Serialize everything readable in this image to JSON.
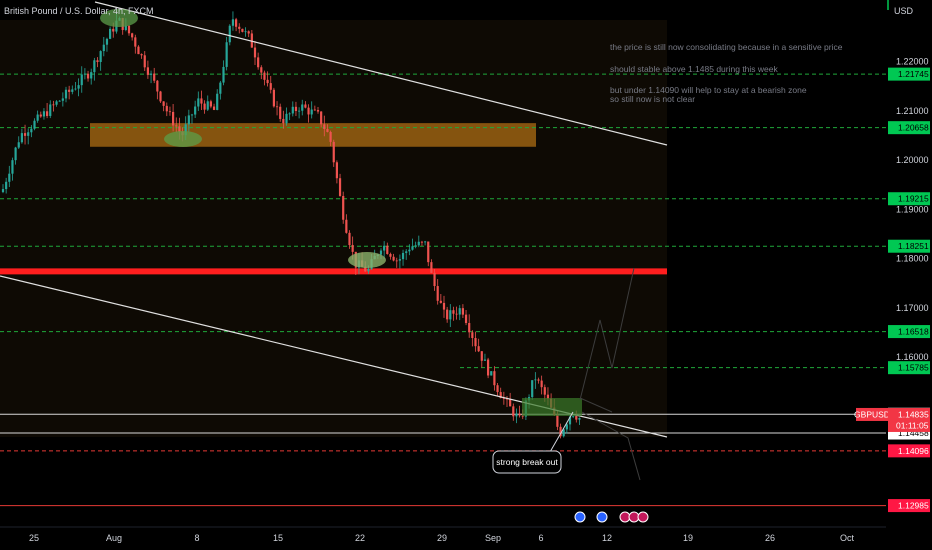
{
  "header": {
    "symbol_title": "British Pound / U.S. Dollar, 4h, FXCM",
    "currency": "USD"
  },
  "chart_data": {
    "type": "candlestick",
    "symbol": "GBPUSD",
    "timeframe": "4h",
    "ylim": [
      1.1255,
      1.2325
    ],
    "x_ticks": [
      "25",
      "Aug",
      "8",
      "15",
      "22",
      "29",
      "Sep",
      "6",
      "12",
      "19",
      "26",
      "Oct"
    ],
    "y_ticks": [
      "1.22000",
      "1.21000",
      "1.20000",
      "1.19000",
      "1.18000",
      "1.17000",
      "1.16000"
    ],
    "y_tick_values": [
      1.22,
      1.21,
      1.2,
      1.19,
      1.18,
      1.17,
      1.16
    ],
    "level_labels": [
      {
        "text": "1.21745",
        "value": 1.21745,
        "color": "#00c853",
        "text_color": "#000000"
      },
      {
        "text": "1.20658",
        "value": 1.20658,
        "color": "#00c853",
        "text_color": "#000000"
      },
      {
        "text": "1.19215",
        "value": 1.19215,
        "color": "#00c853",
        "text_color": "#000000"
      },
      {
        "text": "1.18251",
        "value": 1.18251,
        "color": "#00c853",
        "text_color": "#000000"
      },
      {
        "text": "1.16518",
        "value": 1.16518,
        "color": "#00c853",
        "text_color": "#000000"
      },
      {
        "text": "1.15785",
        "value": 1.15785,
        "color": "#00c853",
        "text_color": "#000000"
      },
      {
        "text": "1.14839",
        "value": 1.14839,
        "color": "#ffffff",
        "text_color": "#000000"
      },
      {
        "text": "1.14458",
        "value": 1.14458,
        "color": "#ffffff",
        "text_color": "#000000"
      },
      {
        "text": "1.14096",
        "value": 1.14096,
        "color": "#ff1744",
        "text_color": "#ffffff"
      },
      {
        "text": "1.12985",
        "value": 1.12985,
        "color": "#ff1744",
        "text_color": "#ffffff"
      }
    ],
    "current_price": {
      "ticker": "GBPUSD",
      "price": "1.14835",
      "value": 1.14835,
      "countdown": "01:11:05",
      "color": "#f23645"
    },
    "dashed_levels_green": [
      1.21745,
      1.20658,
      1.19215,
      1.18251,
      1.16518,
      1.15785
    ],
    "solid_levels_white": [
      1.14839,
      1.14458
    ],
    "dashed_level_red": 1.14096,
    "solid_level_red": 1.12985,
    "thick_red_level": 1.1774,
    "supply_zone": {
      "from": 1.2027,
      "to": 1.2075
    },
    "annotations": [
      "the price is still now consolidating because in a sensitive price",
      "should stable above 1.1485 during this week",
      "but under 1.14090 will help to stay at a bearish zone",
      "so still now is not clear"
    ],
    "callout": "strong break out",
    "colors": {
      "up": "#26a69a",
      "down": "#ef5350",
      "background": "#000000"
    }
  }
}
